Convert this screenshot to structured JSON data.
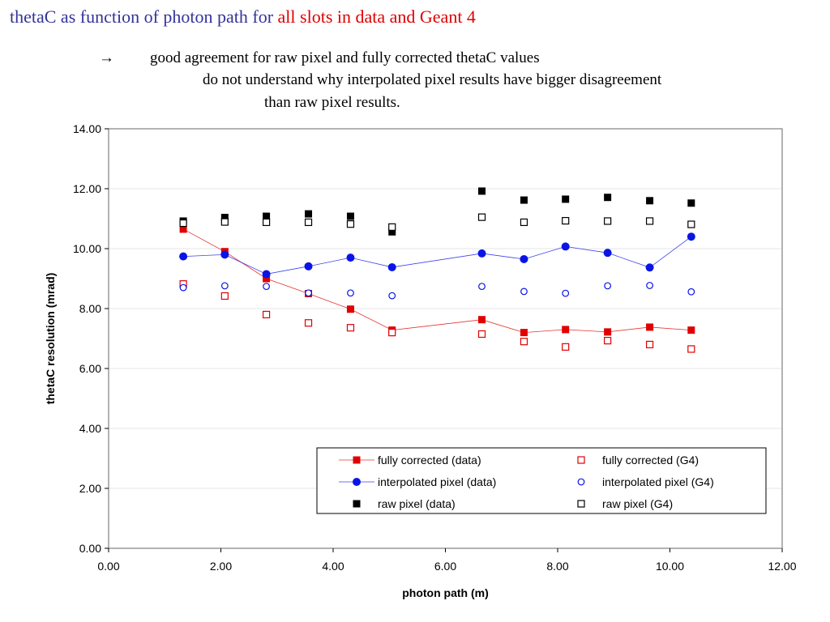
{
  "slide": {
    "title_part1": "thetaC as function of photon path for ",
    "title_part2": "all slots in data and Geant 4",
    "arrow": "→",
    "note_line1": "good agreement for raw pixel and fully corrected thetaC values",
    "note_line2": "do not understand why interpolated pixel results have bigger disagreement",
    "note_line3": "than raw pixel results."
  },
  "colors": {
    "title_blue": "#33339a",
    "title_red": "#e00000",
    "red": "#e00000",
    "blue": "#0a14e6",
    "black": "#000000",
    "plot_border": "#808080",
    "grid": "#e6e6e6"
  },
  "chart_data": {
    "type": "scatter",
    "xlabel": "photon path (m)",
    "ylabel": "thetaC resolution (mrad)",
    "xlim": [
      0,
      12
    ],
    "ylim": [
      0,
      14
    ],
    "x_ticks": [
      "0.00",
      "2.00",
      "4.00",
      "6.00",
      "8.00",
      "10.00",
      "12.00"
    ],
    "y_ticks": [
      "0.00",
      "2.00",
      "4.00",
      "6.00",
      "8.00",
      "10.00",
      "12.00",
      "14.00"
    ],
    "grid": "horizontal",
    "legend_position": "bottom-right",
    "series": [
      {
        "name": "fully corrected (data)",
        "marker": "filled-square",
        "color": "#e00000",
        "line": true,
        "x": [
          1.33,
          2.07,
          2.81,
          3.56,
          4.31,
          5.05,
          6.65,
          7.4,
          8.14,
          8.89,
          9.64,
          10.38
        ],
        "y": [
          10.65,
          9.9,
          9.0,
          8.5,
          7.98,
          7.28,
          7.63,
          7.2,
          7.3,
          7.22,
          7.38,
          7.28
        ]
      },
      {
        "name": "fully corrected (G4)",
        "marker": "open-square",
        "color": "#e00000",
        "line": false,
        "x": [
          1.33,
          2.07,
          2.81,
          3.56,
          4.31,
          5.05,
          6.65,
          7.4,
          8.14,
          8.89,
          9.64,
          10.38
        ],
        "y": [
          8.82,
          8.42,
          7.8,
          7.52,
          7.36,
          7.2,
          7.15,
          6.9,
          6.72,
          6.93,
          6.8,
          6.65
        ]
      },
      {
        "name": "interpolated pixel (data)",
        "marker": "filled-circle",
        "color": "#0a14e6",
        "line": true,
        "x": [
          1.33,
          2.07,
          2.81,
          3.56,
          4.31,
          5.05,
          6.65,
          7.4,
          8.14,
          8.89,
          9.64,
          10.38
        ],
        "y": [
          9.74,
          9.8,
          9.15,
          9.41,
          9.7,
          9.38,
          9.84,
          9.65,
          10.07,
          9.86,
          9.37,
          10.4
        ]
      },
      {
        "name": "interpolated pixel (G4)",
        "marker": "open-circle",
        "color": "#0a14e6",
        "line": false,
        "x": [
          1.33,
          2.07,
          2.81,
          3.56,
          4.31,
          5.05,
          6.65,
          7.4,
          8.14,
          8.89,
          9.64,
          10.38
        ],
        "y": [
          8.7,
          8.76,
          8.74,
          8.52,
          8.52,
          8.43,
          8.74,
          8.57,
          8.51,
          8.76,
          8.77,
          8.56
        ]
      },
      {
        "name": "raw pixel (data)",
        "marker": "filled-square",
        "color": "#000000",
        "line": false,
        "x": [
          1.33,
          2.07,
          2.81,
          3.56,
          4.31,
          5.05,
          6.65,
          7.4,
          8.14,
          8.89,
          9.64,
          10.38
        ],
        "y": [
          10.92,
          11.04,
          11.08,
          11.16,
          11.08,
          10.56,
          11.92,
          11.62,
          11.65,
          11.71,
          11.6,
          11.52
        ]
      },
      {
        "name": "raw pixel (G4)",
        "marker": "open-square",
        "color": "#000000",
        "line": false,
        "x": [
          1.33,
          2.07,
          2.81,
          3.56,
          4.31,
          5.05,
          6.65,
          7.4,
          8.14,
          8.89,
          9.64,
          10.38
        ],
        "y": [
          10.85,
          10.89,
          10.88,
          10.88,
          10.82,
          10.72,
          11.05,
          10.88,
          10.93,
          10.92,
          10.92,
          10.81
        ]
      }
    ]
  }
}
